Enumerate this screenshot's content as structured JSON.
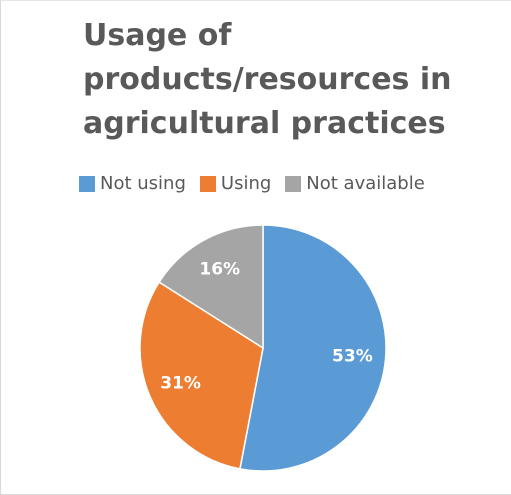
{
  "chart_data": {
    "type": "pie",
    "title": "Usage of products/resources in agricultural practices",
    "legend_position": "top",
    "categories": [
      "Not using",
      "Using",
      "Not available"
    ],
    "values": [
      53,
      31,
      16
    ],
    "labels": [
      "53%",
      "31%",
      "16%"
    ],
    "colors": [
      "#5b9bd5",
      "#ed7d31",
      "#a5a5a5"
    ]
  }
}
